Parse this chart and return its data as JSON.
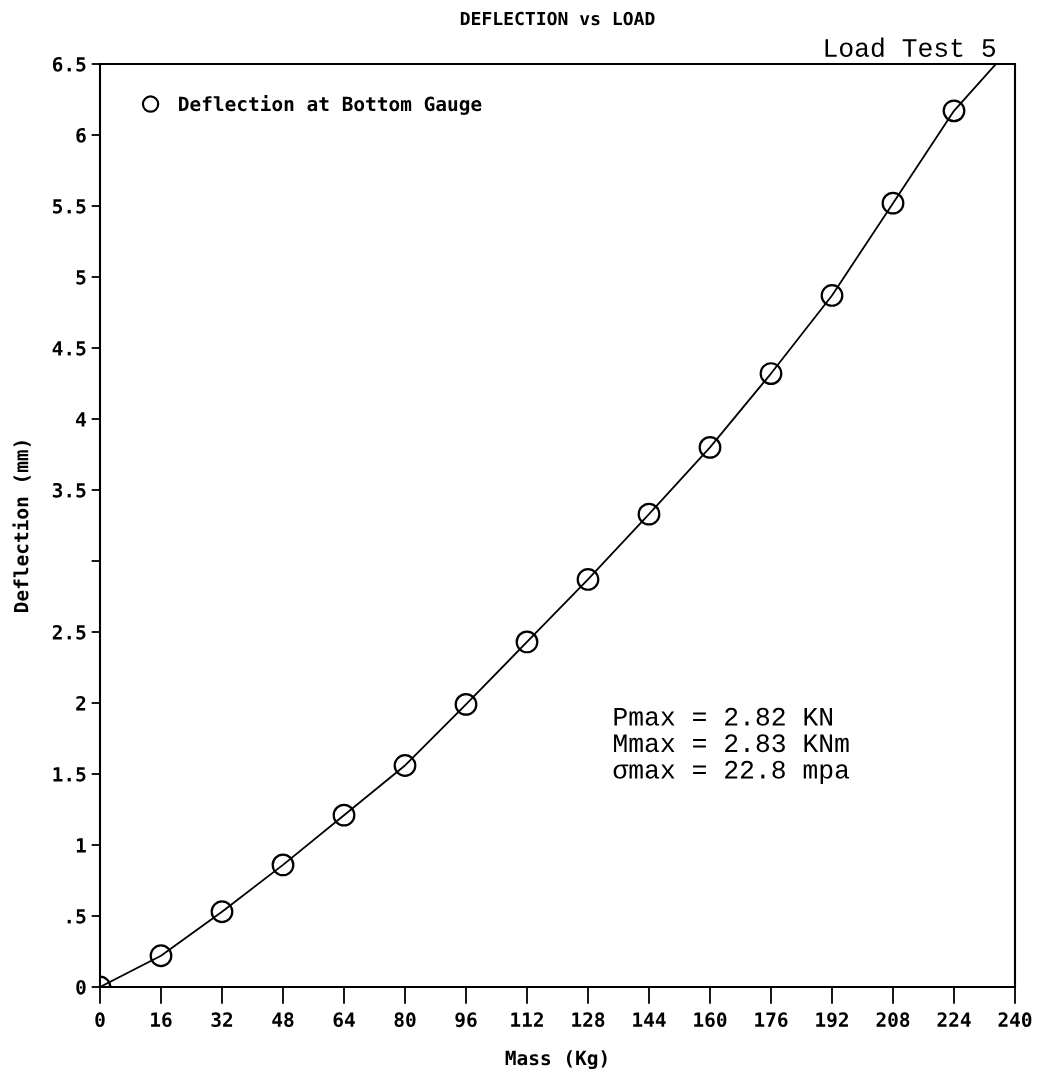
{
  "chart_data": {
    "type": "scatter",
    "title": "DEFLECTION vs LOAD",
    "xlabel": "Mass (Kg)",
    "ylabel": "Deflection (mm)",
    "x": [
      0,
      16,
      32,
      48,
      64,
      80,
      96,
      112,
      128,
      144,
      160,
      176,
      192,
      208,
      224
    ],
    "series": [
      {
        "name": "Deflection at Bottom Gauge",
        "color": "#000000",
        "marker": "circle",
        "values": [
          0,
          0.22,
          0.53,
          0.86,
          1.21,
          1.56,
          1.99,
          2.43,
          2.87,
          3.33,
          3.8,
          4.32,
          4.87,
          5.52,
          6.17
        ]
      },
      {
        "type": "line",
        "color": "#000000",
        "marker": "none",
        "line_style": "solid",
        "x": [
          0,
          16,
          32,
          48,
          64,
          80,
          96,
          112,
          128,
          144,
          160,
          176,
          192,
          208,
          224,
          235
        ],
        "values": [
          0,
          0.22,
          0.53,
          0.86,
          1.21,
          1.56,
          1.99,
          2.43,
          2.87,
          3.33,
          3.8,
          4.32,
          4.87,
          5.52,
          6.17,
          6.5
        ]
      }
    ],
    "xlim": [
      0,
      240
    ],
    "ylim": [
      0,
      6.5
    ],
    "xticks": [
      0,
      16,
      32,
      48,
      64,
      80,
      96,
      112,
      128,
      144,
      160,
      176,
      192,
      208,
      224,
      240
    ],
    "yticks": [
      0,
      {
        "value": 0.5,
        "label": ".5"
      },
      1,
      1.5,
      2,
      2.5,
      {
        "value": 3,
        "label": null
      },
      3.5,
      4,
      4.5,
      5,
      5.5,
      6,
      6.5
    ],
    "grid": false,
    "legend": "top left",
    "annotations": [
      "Load Test 5",
      "Pmax = 2.82 KN",
      "Mmax = 2.83 KNm",
      "σmax = 22.8 mpa"
    ]
  }
}
